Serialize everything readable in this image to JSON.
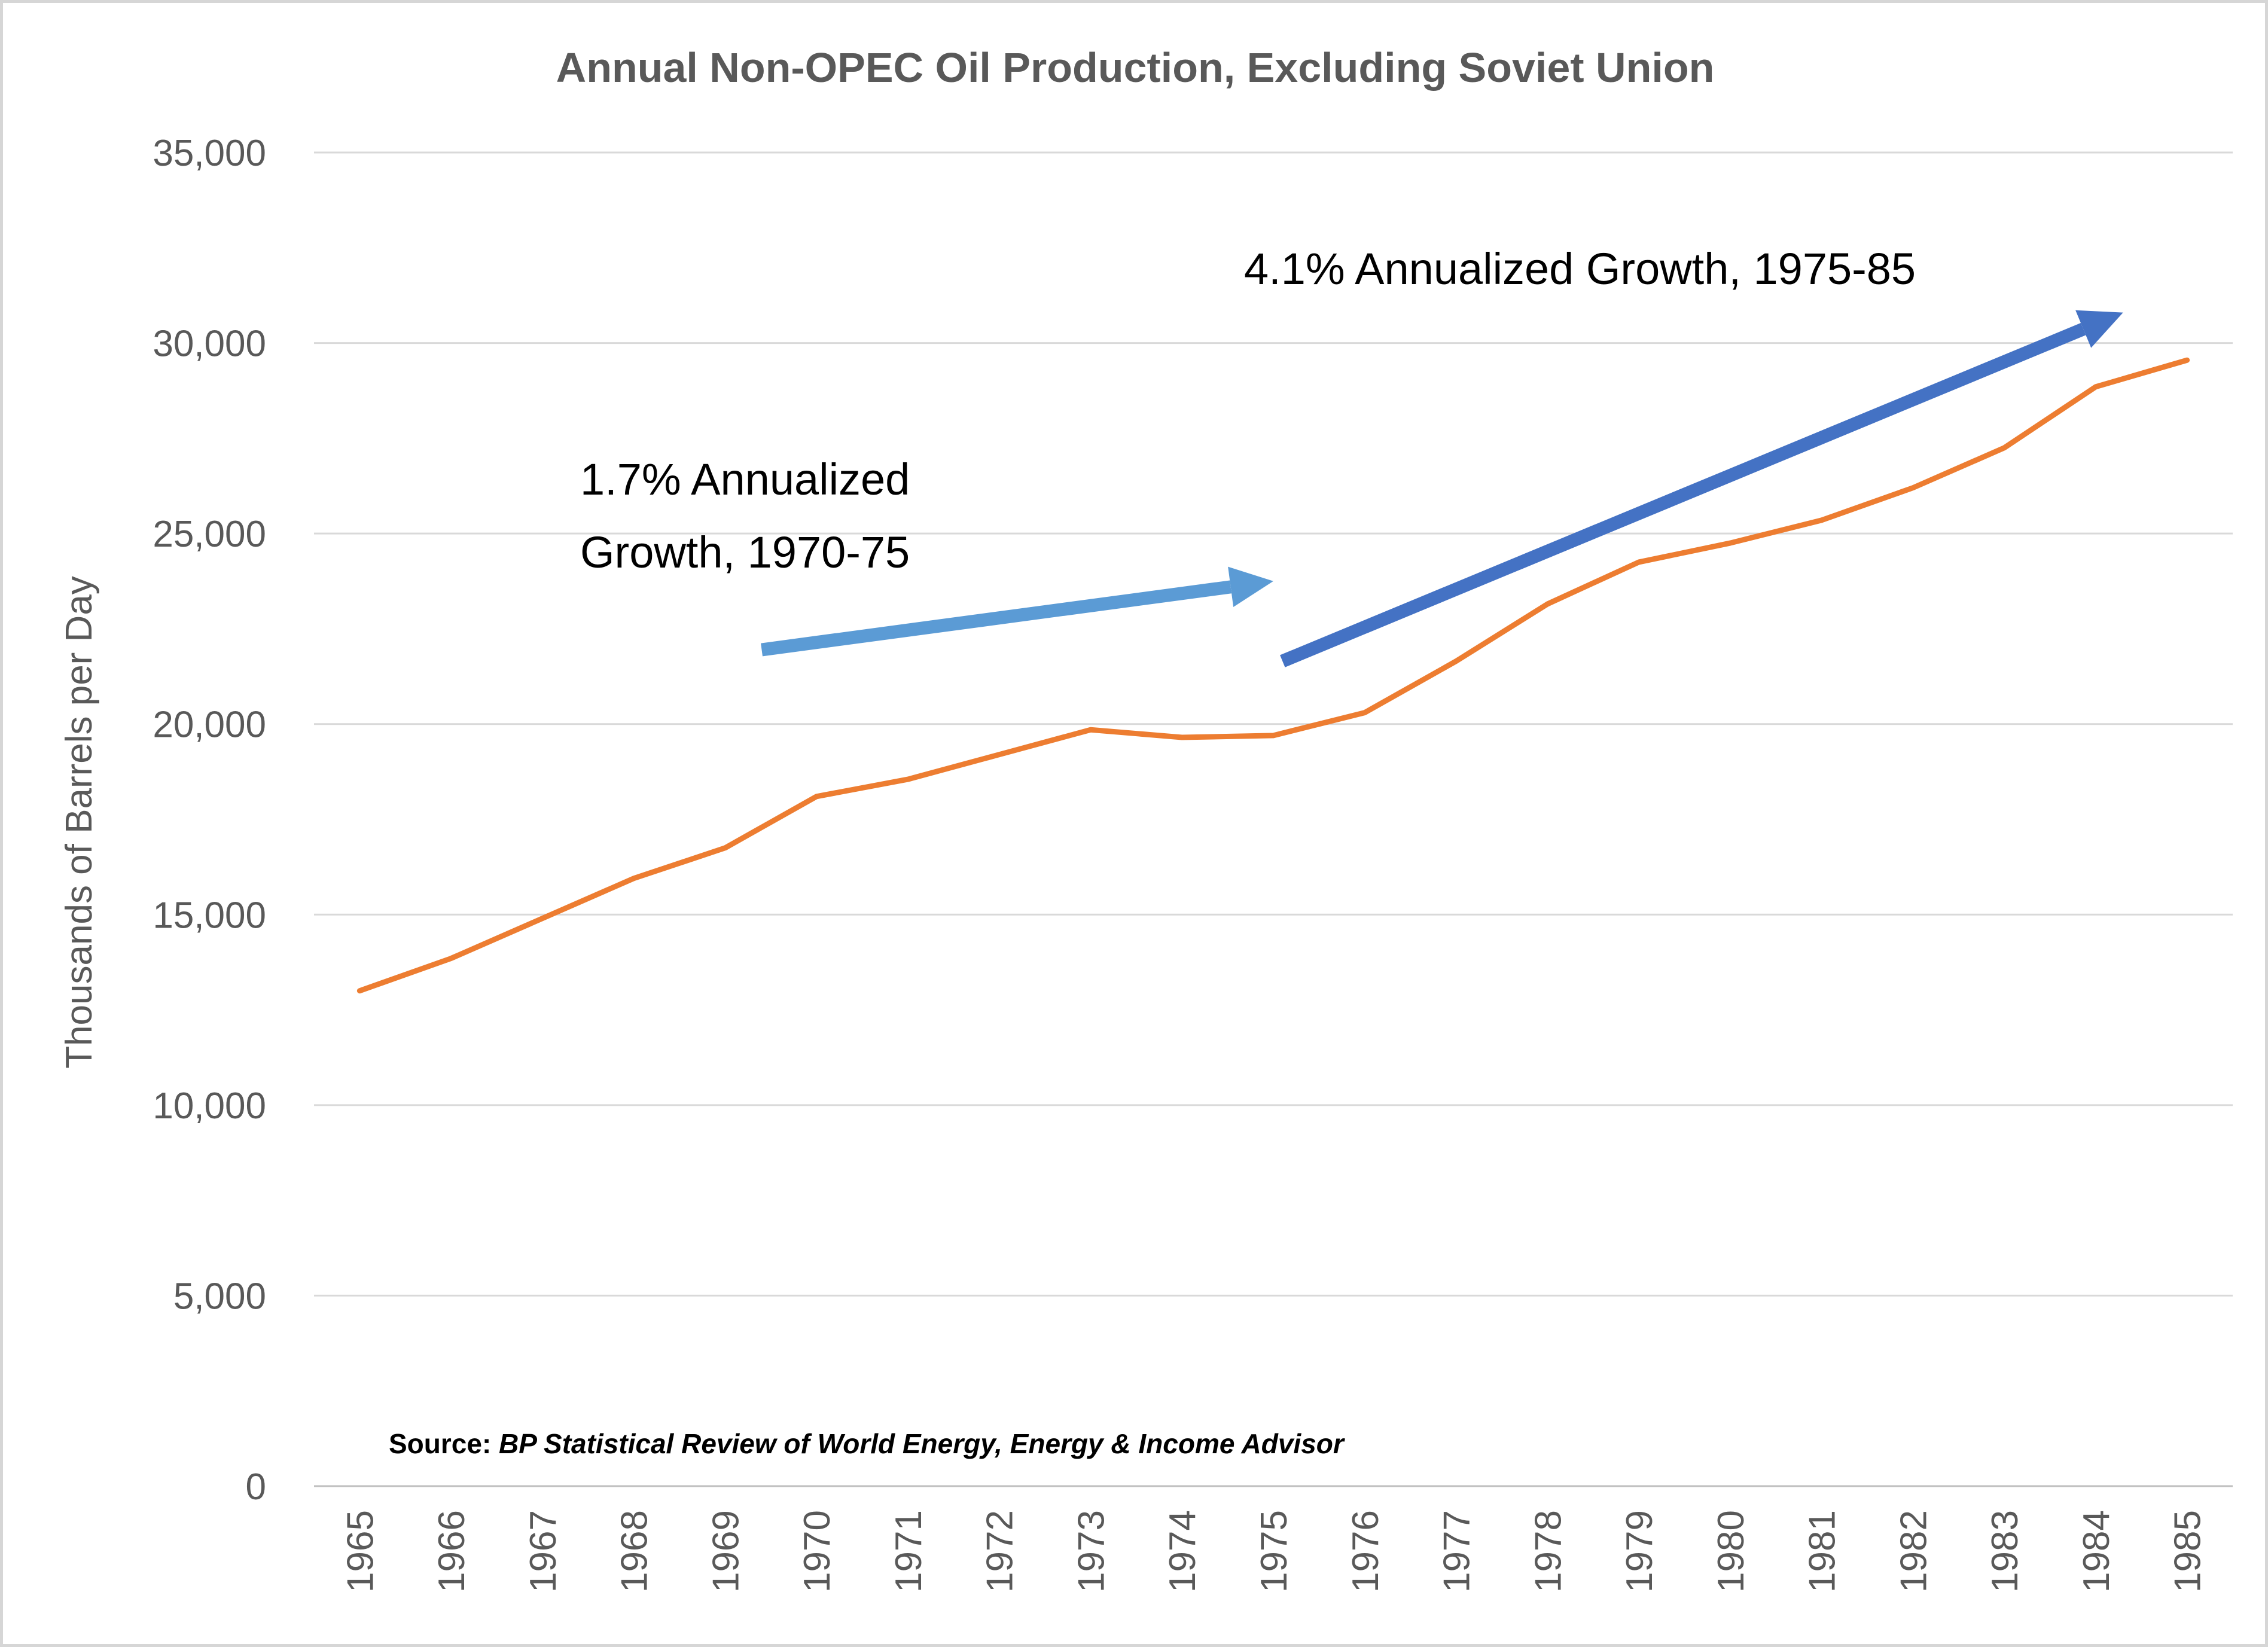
{
  "chart_data": {
    "type": "line",
    "title": "Annual Non-OPEC Oil Production, Excluding Soviet Union",
    "ylabel": "Thousands of Barrels per Day",
    "xlabel": "",
    "ylim": [
      0,
      35000
    ],
    "yticks": [
      0,
      5000,
      10000,
      15000,
      20000,
      25000,
      30000,
      35000
    ],
    "ytick_labels": [
      "0",
      "5,000",
      "10,000",
      "15,000",
      "20,000",
      "25,000",
      "30,000",
      "35,000"
    ],
    "grid": true,
    "categories": [
      "1965",
      "1966",
      "1967",
      "1968",
      "1969",
      "1970",
      "1971",
      "1972",
      "1973",
      "1974",
      "1975",
      "1976",
      "1977",
      "1978",
      "1979",
      "1980",
      "1981",
      "1982",
      "1983",
      "1984",
      "1985"
    ],
    "series": [
      {
        "color": "#ed7d31",
        "values": [
          13000,
          13850,
          14900,
          15950,
          16750,
          18100,
          18550,
          19200,
          19850,
          19650,
          19700,
          20300,
          21650,
          23150,
          24250,
          24750,
          25350,
          26200,
          27250,
          28850,
          29550
        ]
      }
    ],
    "annotations": [
      {
        "lines": [
          "1.7% Annualized",
          "Growth, 1970-75"
        ],
        "arrow_color": "#5b9bd5",
        "arrow_from": [
          "1969.4",
          21950
        ],
        "arrow_to": [
          "1975",
          23750
        ]
      },
      {
        "lines": [
          "4.1% Annualized  Growth,  1975-85"
        ],
        "arrow_color": "#4472c4",
        "arrow_from": [
          "1975.1",
          21650
        ],
        "arrow_to": [
          "1984.3",
          30800
        ]
      }
    ],
    "source_label": "Source: ",
    "source_text": "BP Statistical Review of World Energy, Energy & Income Advisor"
  }
}
